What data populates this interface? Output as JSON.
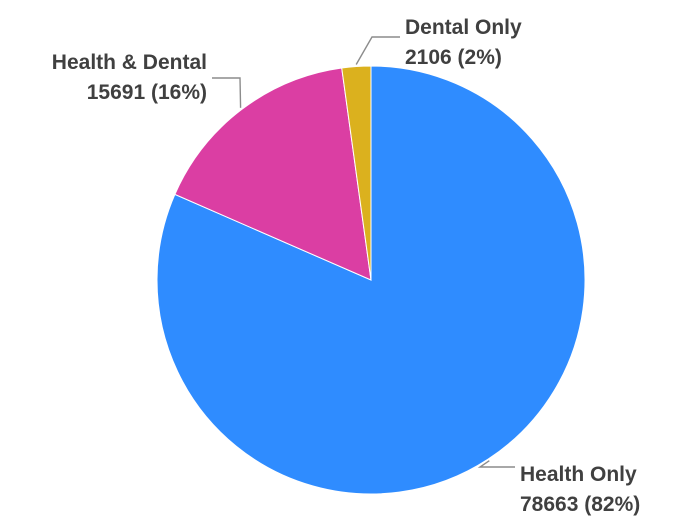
{
  "chart_data": {
    "type": "pie",
    "title": "",
    "slices": [
      {
        "name": "Health Only",
        "value": 78663,
        "percent_label": "(82%)",
        "value_label": "78663 (82%)",
        "color": "#2f8cff"
      },
      {
        "name": "Health & Dental",
        "value": 15691,
        "percent_label": "(16%)",
        "value_label": "15691 (16%)",
        "color": "#db3ea3"
      },
      {
        "name": "Dental Only",
        "value": 2106,
        "percent_label": "(2%)",
        "value_label": "2106 (2%)",
        "color": "#dbb11e"
      }
    ],
    "slice_order": "clockwise from 12 o'clock: Health Only, Health & Dental, Dental Only",
    "legend": "none"
  }
}
